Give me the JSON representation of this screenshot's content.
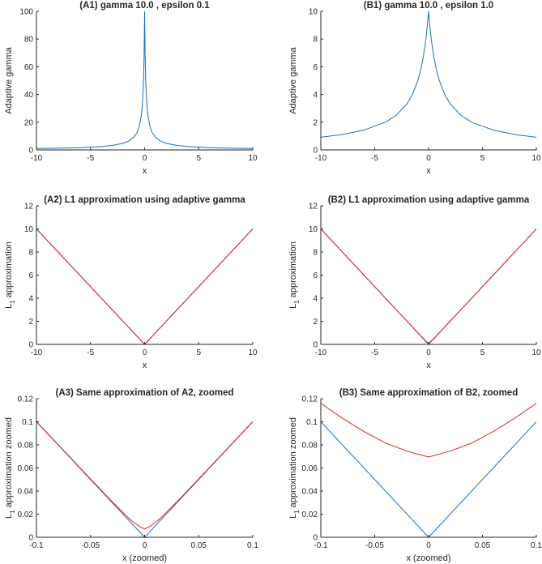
{
  "colors": {
    "blue": "#1f6fb4",
    "red": "#e0262b",
    "axis": "#262626"
  },
  "chart_data": [
    {
      "id": "A1",
      "type": "line",
      "title": "(A1) gamma 10.0 , epsilon 0.1",
      "xlabel": "x",
      "ylabel": "Adaptive gamma",
      "xlim": [
        -10,
        10
      ],
      "ylim": [
        0,
        100
      ],
      "xticks": [
        -10,
        -5,
        0,
        5,
        10
      ],
      "xtick_labels": [
        "-10",
        "-5",
        "0",
        "5",
        "10"
      ],
      "yticks": [
        0,
        20,
        40,
        60,
        80,
        100
      ],
      "ytick_labels": [
        "0",
        "20",
        "40",
        "60",
        "80",
        "100"
      ],
      "series": [
        {
          "color": "#1f6fb4",
          "x": [
            -10,
            -8,
            -6,
            -4,
            -3,
            -2,
            -1.5,
            -1,
            -0.7,
            -0.5,
            -0.3,
            -0.2,
            -0.1,
            -0.05,
            0,
            0.05,
            0.1,
            0.2,
            0.3,
            0.5,
            0.7,
            1,
            1.5,
            2,
            3,
            4,
            6,
            8,
            10
          ],
          "y": [
            0.99,
            1.23,
            1.64,
            2.44,
            3.23,
            4.76,
            6.25,
            9.09,
            12.5,
            16.7,
            25.0,
            33.3,
            50.0,
            66.7,
            100,
            66.7,
            50.0,
            33.3,
            25.0,
            16.7,
            12.5,
            9.09,
            6.25,
            4.76,
            3.23,
            2.44,
            1.64,
            1.23,
            0.99
          ]
        }
      ]
    },
    {
      "id": "B1",
      "type": "line",
      "title": "(B1) gamma 10.0 , epsilon 1.0",
      "xlabel": "x",
      "ylabel": "Adaptive gamma",
      "xlim": [
        -10,
        10
      ],
      "ylim": [
        0,
        10
      ],
      "xticks": [
        -10,
        -5,
        0,
        5,
        10
      ],
      "xtick_labels": [
        "-10",
        "-5",
        "0",
        "5",
        "10"
      ],
      "yticks": [
        0,
        2,
        4,
        6,
        8,
        10
      ],
      "ytick_labels": [
        "0",
        "2",
        "4",
        "6",
        "8",
        "10"
      ],
      "series": [
        {
          "color": "#1f6fb4",
          "x": [
            -10,
            -8,
            -6,
            -4,
            -3,
            -2,
            -1.5,
            -1,
            -0.7,
            -0.5,
            -0.3,
            -0.2,
            -0.1,
            0,
            0.1,
            0.2,
            0.3,
            0.5,
            0.7,
            1,
            1.5,
            2,
            3,
            4,
            6,
            8,
            10
          ],
          "y": [
            0.91,
            1.11,
            1.43,
            2.0,
            2.5,
            3.33,
            4.0,
            5.0,
            5.88,
            6.67,
            7.69,
            8.33,
            9.09,
            10,
            9.09,
            8.33,
            7.69,
            6.67,
            5.88,
            5.0,
            4.0,
            3.33,
            2.5,
            2.0,
            1.43,
            1.11,
            0.91
          ]
        }
      ]
    },
    {
      "id": "A2",
      "type": "line",
      "title": "(A2) L1 approximation using adaptive gamma",
      "xlabel": "x",
      "ylabel": "L",
      "ylabel_sub": "1",
      "ylabel_rest": " approximation",
      "xlim": [
        -10,
        10
      ],
      "ylim": [
        0,
        12
      ],
      "xticks": [
        -10,
        -5,
        0,
        5,
        10
      ],
      "xtick_labels": [
        "-10",
        "-5",
        "0",
        "5",
        "10"
      ],
      "yticks": [
        0,
        2,
        4,
        6,
        8,
        10,
        12
      ],
      "ytick_labels": [
        "0",
        "2",
        "4",
        "6",
        "8",
        "10",
        "12"
      ],
      "series": [
        {
          "color": "#1f6fb4",
          "x": [
            -10,
            0,
            10
          ],
          "y": [
            10,
            0,
            10
          ]
        },
        {
          "color": "#e0262b",
          "x": [
            -10,
            -5,
            -1,
            0,
            1,
            5,
            10
          ],
          "y": [
            10.0,
            5.0,
            1.0,
            0.01,
            1.0,
            5.0,
            10.0
          ]
        }
      ]
    },
    {
      "id": "B2",
      "type": "line",
      "title": "(B2) L1 approximation using adaptive gamma",
      "xlabel": "x",
      "ylabel": "L",
      "ylabel_sub": "1",
      "ylabel_rest": " approximation",
      "xlim": [
        -10,
        10
      ],
      "ylim": [
        0,
        12
      ],
      "xticks": [
        -10,
        -5,
        0,
        5,
        10
      ],
      "xtick_labels": [
        "-10",
        "-5",
        "0",
        "5",
        "10"
      ],
      "yticks": [
        0,
        2,
        4,
        6,
        8,
        10,
        12
      ],
      "ytick_labels": [
        "0",
        "2",
        "4",
        "6",
        "8",
        "10",
        "12"
      ],
      "series": [
        {
          "color": "#1f6fb4",
          "x": [
            -10,
            0,
            10
          ],
          "y": [
            10,
            0,
            10
          ]
        },
        {
          "color": "#e0262b",
          "x": [
            -10,
            -5,
            -1,
            -0.5,
            0,
            0.5,
            1,
            5,
            10
          ],
          "y": [
            10.0,
            5.0,
            1.02,
            0.53,
            0.07,
            0.53,
            1.02,
            5.0,
            10.0
          ]
        }
      ]
    },
    {
      "id": "A3",
      "type": "line",
      "title": "(A3) Same approximation of A2, zoomed",
      "xlabel": "x (zoomed)",
      "ylabel": "L",
      "ylabel_sub": "1",
      "ylabel_rest": " approximation zoomed",
      "xlim": [
        -0.1,
        0.1
      ],
      "ylim": [
        0,
        0.12
      ],
      "xticks": [
        -0.1,
        -0.05,
        0,
        0.05,
        0.1
      ],
      "xtick_labels": [
        "-0.1",
        "-0.05",
        "0",
        "0.05",
        "0.1"
      ],
      "yticks": [
        0,
        0.02,
        0.04,
        0.06,
        0.08,
        0.1,
        0.12
      ],
      "ytick_labels": [
        "0",
        "0.02",
        "0.04",
        "0.06",
        "0.08",
        "0.1",
        "0.12"
      ],
      "series": [
        {
          "color": "#1f6fb4",
          "x": [
            -0.1,
            0,
            0.1
          ],
          "y": [
            0.1,
            0,
            0.1
          ]
        },
        {
          "color": "#e0262b",
          "x": [
            -0.1,
            -0.06,
            -0.04,
            -0.03,
            -0.02,
            -0.015,
            -0.01,
            -0.005,
            0,
            0.005,
            0.01,
            0.015,
            0.02,
            0.03,
            0.04,
            0.06,
            0.1
          ],
          "y": [
            0.1002,
            0.0604,
            0.0406,
            0.0308,
            0.0215,
            0.0168,
            0.0128,
            0.0095,
            0.0071,
            0.0095,
            0.0128,
            0.0168,
            0.0215,
            0.0308,
            0.0406,
            0.0604,
            0.1002
          ]
        }
      ]
    },
    {
      "id": "B3",
      "type": "line",
      "title": "(B3) Same approximation of B2, zoomed",
      "xlabel": "x (zoomed)",
      "ylabel": "L",
      "ylabel_sub": "1",
      "ylabel_rest": " approximation zoomed",
      "xlim": [
        -0.1,
        0.1
      ],
      "ylim": [
        0,
        0.12
      ],
      "xticks": [
        -0.1,
        -0.05,
        0,
        0.05,
        0.1
      ],
      "xtick_labels": [
        "-0.1",
        "-0.05",
        "0",
        "0.05",
        "0.1"
      ],
      "yticks": [
        0,
        0.02,
        0.04,
        0.06,
        0.08,
        0.1,
        0.12
      ],
      "ytick_labels": [
        "0",
        "0.02",
        "0.04",
        "0.06",
        "0.08",
        "0.1",
        "0.12"
      ],
      "series": [
        {
          "color": "#1f6fb4",
          "x": [
            -0.1,
            0,
            0.1
          ],
          "y": [
            0.1,
            0,
            0.1
          ]
        },
        {
          "color": "#e0262b",
          "x": [
            -0.1,
            -0.08,
            -0.06,
            -0.04,
            -0.02,
            0,
            0.02,
            0.04,
            0.06,
            0.08,
            0.1
          ],
          "y": [
            0.116,
            0.1031,
            0.0915,
            0.0816,
            0.0746,
            0.0695,
            0.0746,
            0.0816,
            0.0915,
            0.1031,
            0.116
          ]
        }
      ]
    }
  ]
}
